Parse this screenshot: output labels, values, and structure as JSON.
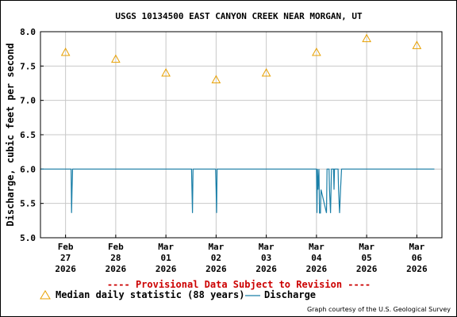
{
  "chart_data": {
    "type": "line",
    "title": "USGS 10134500 EAST CANYON CREEK NEAR MORGAN, UT",
    "ylabel": "Discharge, cubic feet per second",
    "ylim": [
      5.0,
      8.0
    ],
    "yticks": [
      "5.0",
      "5.5",
      "6.0",
      "6.5",
      "7.0",
      "7.5",
      "8.0"
    ],
    "ytick_values": [
      5.0,
      5.5,
      6.0,
      6.5,
      7.0,
      7.5,
      8.0
    ],
    "xlim": [
      -0.5,
      7.5
    ],
    "x_ticks": [
      {
        "x": 0,
        "line1": "Feb",
        "line2": "27",
        "line3": "2026"
      },
      {
        "x": 1,
        "line1": "Feb",
        "line2": "28",
        "line3": "2026"
      },
      {
        "x": 2,
        "line1": "Mar",
        "line2": "01",
        "line3": "2026"
      },
      {
        "x": 3,
        "line1": "Mar",
        "line2": "02",
        "line3": "2026"
      },
      {
        "x": 4,
        "line1": "Mar",
        "line2": "03",
        "line3": "2026"
      },
      {
        "x": 5,
        "line1": "Mar",
        "line2": "04",
        "line3": "2026"
      },
      {
        "x": 6,
        "line1": "Mar",
        "line2": "05",
        "line3": "2026"
      },
      {
        "x": 7,
        "line1": "Mar",
        "line2": "06",
        "line3": "2026"
      }
    ],
    "grid": true,
    "series": [
      {
        "name": "Median daily statistic (88 years)",
        "kind": "marker-triangle",
        "color": "#e8a000",
        "points": [
          {
            "x": 0,
            "y": 7.7
          },
          {
            "x": 1,
            "y": 7.6
          },
          {
            "x": 2,
            "y": 7.4
          },
          {
            "x": 3,
            "y": 7.3
          },
          {
            "x": 4,
            "y": 7.4
          },
          {
            "x": 5,
            "y": 7.7
          },
          {
            "x": 6,
            "y": 7.9
          },
          {
            "x": 7,
            "y": 7.8
          }
        ]
      },
      {
        "name": "Discharge",
        "kind": "step-line",
        "color": "#1a7fa8",
        "points": [
          {
            "x": -0.5,
            "y": 6.0
          },
          {
            "x": 0.11,
            "y": 6.0
          },
          {
            "x": 0.12,
            "y": 5.36
          },
          {
            "x": 0.13,
            "y": 5.7
          },
          {
            "x": 0.14,
            "y": 6.0
          },
          {
            "x": 2.51,
            "y": 6.0
          },
          {
            "x": 2.52,
            "y": 5.68
          },
          {
            "x": 2.53,
            "y": 5.36
          },
          {
            "x": 2.54,
            "y": 6.0
          },
          {
            "x": 2.99,
            "y": 6.0
          },
          {
            "x": 3.0,
            "y": 5.7
          },
          {
            "x": 3.01,
            "y": 5.36
          },
          {
            "x": 3.02,
            "y": 6.0
          },
          {
            "x": 5.0,
            "y": 6.0
          },
          {
            "x": 5.01,
            "y": 5.36
          },
          {
            "x": 5.02,
            "y": 6.0
          },
          {
            "x": 5.03,
            "y": 5.7
          },
          {
            "x": 5.05,
            "y": 6.0
          },
          {
            "x": 5.06,
            "y": 5.36
          },
          {
            "x": 5.08,
            "y": 5.36
          },
          {
            "x": 5.09,
            "y": 5.7
          },
          {
            "x": 5.2,
            "y": 5.36
          },
          {
            "x": 5.21,
            "y": 6.0
          },
          {
            "x": 5.25,
            "y": 6.0
          },
          {
            "x": 5.26,
            "y": 5.7
          },
          {
            "x": 5.28,
            "y": 5.36
          },
          {
            "x": 5.3,
            "y": 6.0
          },
          {
            "x": 5.34,
            "y": 6.0
          },
          {
            "x": 5.35,
            "y": 5.7
          },
          {
            "x": 5.36,
            "y": 6.0
          },
          {
            "x": 5.43,
            "y": 6.0
          },
          {
            "x": 5.44,
            "y": 5.7
          },
          {
            "x": 5.46,
            "y": 5.36
          },
          {
            "x": 5.48,
            "y": 5.7
          },
          {
            "x": 5.5,
            "y": 6.0
          },
          {
            "x": 7.35,
            "y": 6.0
          }
        ]
      }
    ]
  },
  "provisional_note": "---- Provisional Data Subject to Revision ----",
  "provisional_color": "#cc0000",
  "credit": "Graph courtesy of the U.S. Geological Survey",
  "grid_color": "#c8c8c8"
}
